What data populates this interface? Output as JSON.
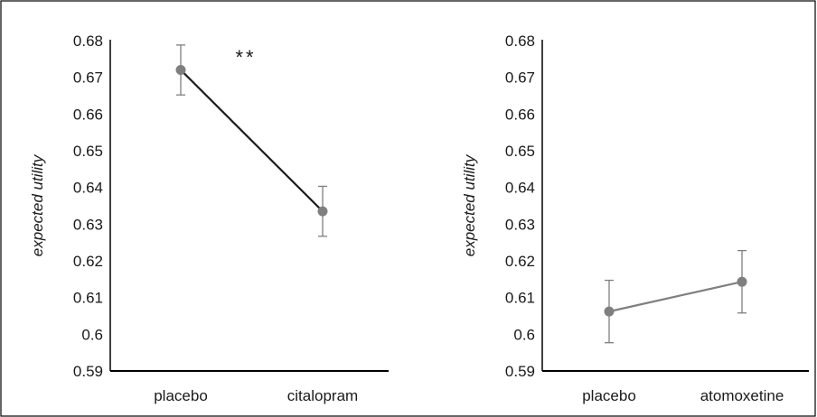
{
  "chart_data": [
    {
      "type": "line",
      "title": "",
      "xlabel": "",
      "ylabel": "expected utility",
      "ylim": [
        0.59,
        0.68
      ],
      "yticks": [
        "0.59",
        "0.6",
        "0.61",
        "0.62",
        "0.63",
        "0.64",
        "0.65",
        "0.66",
        "0.67",
        "0.68"
      ],
      "categories": [
        "placebo",
        "citalopram"
      ],
      "series": [
        {
          "values": [
            0.672,
            0.6335
          ],
          "error": [
            0.0068,
            0.0068
          ]
        }
      ],
      "line_color": "#1a1a1a",
      "marker_color": "#7f7f7f",
      "annotation": "**"
    },
    {
      "type": "line",
      "title": "",
      "xlabel": "",
      "ylabel": "expected utility",
      "ylim": [
        0.59,
        0.68
      ],
      "yticks": [
        "0.59",
        "0.6",
        "0.61",
        "0.62",
        "0.63",
        "0.64",
        "0.65",
        "0.66",
        "0.67",
        "0.68"
      ],
      "categories": [
        "placebo",
        "atomoxetine"
      ],
      "series": [
        {
          "values": [
            0.6062,
            0.6143
          ],
          "error": [
            0.0085,
            0.0085
          ]
        }
      ],
      "line_color": "#7f7f7f",
      "marker_color": "#7f7f7f",
      "annotation": ""
    }
  ]
}
